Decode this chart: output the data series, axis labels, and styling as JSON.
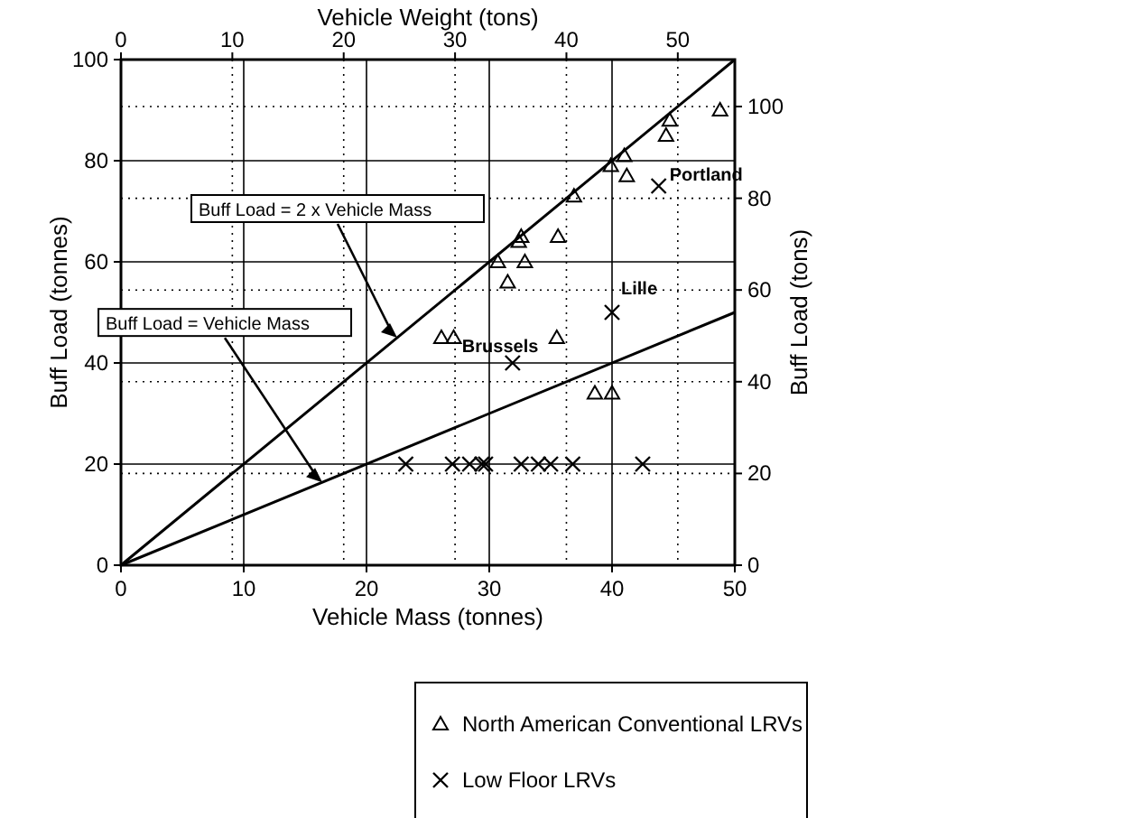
{
  "chart_data": {
    "type": "scatter",
    "xlabel": "Vehicle Mass (tonnes)",
    "ylabel": "Buff Load (tonnes)",
    "x2label": "Vehicle Weight (tons)",
    "y2label": "Buff Load (tons)",
    "xlim": [
      0,
      50
    ],
    "xticks": [
      0,
      10,
      20,
      30,
      40,
      50
    ],
    "ylim": [
      0,
      100
    ],
    "yticks": [
      0,
      20,
      40,
      60,
      80,
      100
    ],
    "x2lim": [
      0,
      55.12
    ],
    "x2ticks": [
      0,
      10,
      20,
      30,
      40,
      50
    ],
    "y2lim": [
      0,
      110.23
    ],
    "y2ticks": [
      0,
      20,
      40,
      60,
      80,
      100
    ],
    "grid": true,
    "legend": "bottom",
    "series": [
      {
        "name": "North American Conventional LRVs",
        "type": "scatter",
        "marker": "triangle",
        "color": "#000000",
        "x": [
          26.1,
          27.1,
          30.7,
          31.5,
          32.4,
          32.6,
          32.9,
          35.6,
          35.5,
          36.9,
          38.6,
          40.0,
          39.9,
          41.0,
          41.2,
          44.4,
          44.7,
          48.8
        ],
        "values": [
          45,
          45,
          60,
          56,
          64,
          65,
          60,
          65,
          45,
          73,
          34,
          34,
          79,
          81,
          77,
          85,
          88,
          90
        ]
      },
      {
        "name": "Low Floor LRVs",
        "type": "scatter",
        "marker": "cross",
        "color": "#000000",
        "x": [
          23.2,
          27.0,
          28.4,
          29.4,
          29.7,
          32.6,
          34.0,
          35.0,
          36.8,
          42.5,
          31.9,
          40.0,
          43.8
        ],
        "values": [
          20,
          20,
          20,
          20,
          20,
          20,
          20,
          20,
          20,
          20,
          40,
          50,
          75
        ]
      },
      {
        "type": "line",
        "marker": "none",
        "color": "#000000",
        "x": [
          0,
          50
        ],
        "values": [
          0,
          100
        ]
      },
      {
        "type": "line",
        "marker": "none",
        "color": "#000000",
        "x": [
          0,
          50
        ],
        "values": [
          0,
          50
        ]
      }
    ],
    "annotations": [
      {
        "text": "Buff Load = 2 x Vehicle Mass",
        "x": 22.5,
        "y": 45
      },
      {
        "text": "Buff Load = Vehicle Mass",
        "x": 16.4,
        "y": 16.4
      },
      {
        "text": "Brussels",
        "x": 31.9,
        "y": 40
      },
      {
        "text": "Lille",
        "x": 40.0,
        "y": 50
      },
      {
        "text": "Portland",
        "x": 43.8,
        "y": 75
      }
    ]
  }
}
